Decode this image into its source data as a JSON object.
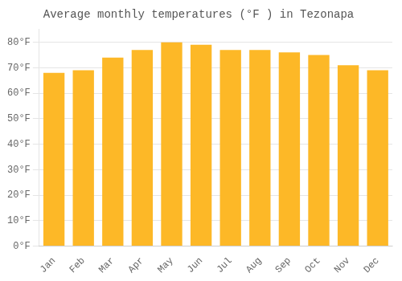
{
  "chart_data": {
    "type": "bar",
    "title": "Average monthly temperatures (°F ) in Tezonapa",
    "categories": [
      "Jan",
      "Feb",
      "Mar",
      "Apr",
      "May",
      "Jun",
      "Jul",
      "Aug",
      "Sep",
      "Oct",
      "Nov",
      "Dec"
    ],
    "values": [
      68,
      69,
      74,
      77,
      80,
      79,
      77,
      77,
      76,
      75,
      71,
      69
    ],
    "color": "#FDB827",
    "ylim": [
      0,
      85
    ],
    "yticks": [
      {
        "value": 0,
        "label": "0°F"
      },
      {
        "value": 10,
        "label": "10°F"
      },
      {
        "value": 20,
        "label": "20°F"
      },
      {
        "value": 30,
        "label": "30°F"
      },
      {
        "value": 40,
        "label": "40°F"
      },
      {
        "value": 50,
        "label": "50°F"
      },
      {
        "value": 60,
        "label": "60°F"
      },
      {
        "value": 70,
        "label": "70°F"
      },
      {
        "value": 80,
        "label": "80°F"
      }
    ],
    "grid": "y"
  }
}
